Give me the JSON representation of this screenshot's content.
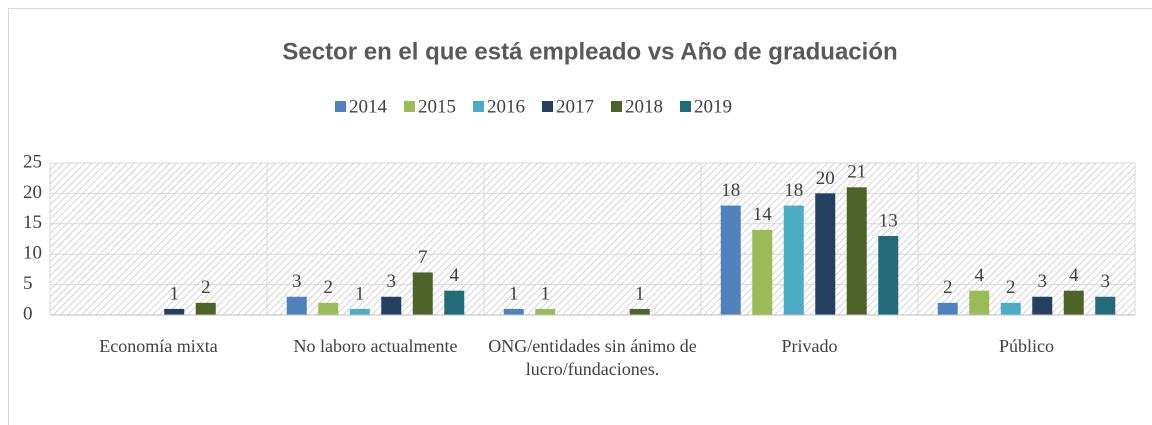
{
  "chart_data": {
    "type": "bar",
    "title": "Sector en el que está empleado vs Año de graduación",
    "categories": [
      "Economía mixta",
      "No laboro actualmente",
      "ONG/entidades sin ánimo de lucro/fundaciones.",
      "Privado",
      "Público"
    ],
    "series": [
      {
        "name": "2014",
        "color": "#4f81bd",
        "values": [
          null,
          3,
          1,
          18,
          2
        ]
      },
      {
        "name": "2015",
        "color": "#9bbb59",
        "values": [
          null,
          2,
          1,
          14,
          4
        ]
      },
      {
        "name": "2016",
        "color": "#4bacc6",
        "values": [
          null,
          1,
          null,
          18,
          2
        ]
      },
      {
        "name": "2017",
        "color": "#243f60",
        "values": [
          1,
          3,
          null,
          20,
          3
        ]
      },
      {
        "name": "2018",
        "color": "#4f6228",
        "values": [
          2,
          7,
          1,
          21,
          4
        ]
      },
      {
        "name": "2019",
        "color": "#226b78",
        "values": [
          null,
          4,
          null,
          13,
          3
        ]
      }
    ],
    "ylim": [
      0,
      25
    ],
    "yticks": [
      0,
      5,
      10,
      15,
      20,
      25
    ],
    "grid": true,
    "legend": "top"
  }
}
